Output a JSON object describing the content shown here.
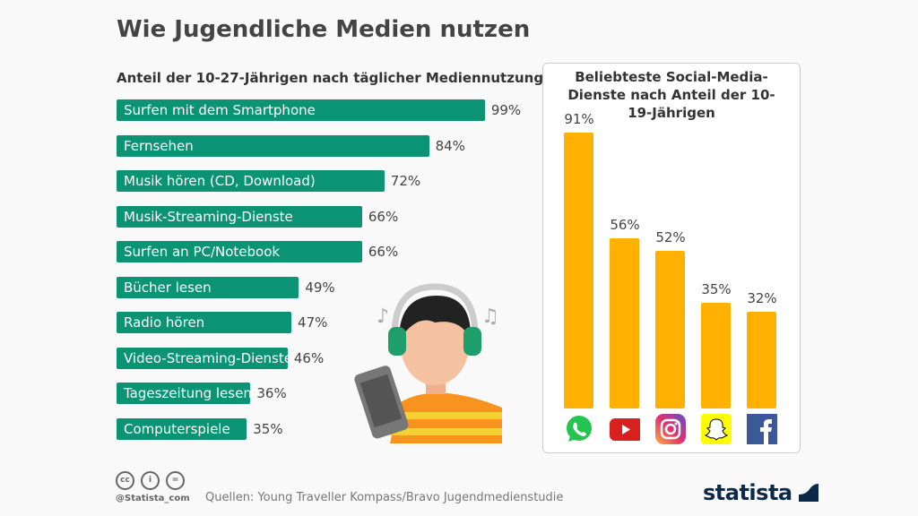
{
  "title": "Wie Jugendliche Medien nutzen",
  "chart_data": [
    {
      "type": "bar",
      "orientation": "horizontal",
      "title": "Anteil der 10-27-Jährigen nach täglicher Mediennutzung",
      "unit": "%",
      "color": "#0a9474",
      "categories": [
        "Surfen mit dem Smartphone",
        "Fernsehen",
        "Musik hören (CD, Download)",
        "Musik-Streaming-Dienste",
        "Surfen an PC/Notebook",
        "Bücher lesen",
        "Radio hören",
        "Video-Streaming-Dienste",
        "Tageszeitung lesen",
        "Computerspiele"
      ],
      "values": [
        99,
        84,
        72,
        66,
        66,
        49,
        47,
        46,
        36,
        35
      ],
      "labels": [
        "99%",
        "84%",
        "72%",
        "66%",
        "66%",
        "49%",
        "47%",
        "46%",
        "36%",
        "35%"
      ]
    },
    {
      "type": "bar",
      "orientation": "vertical",
      "title": "Beliebteste Social-Media-Dienste nach Anteil der 10-19-Jährigen",
      "unit": "%",
      "color": "#ffb000",
      "categories": [
        "WhatsApp",
        "YouTube",
        "Instagram",
        "Snapchat",
        "Facebook"
      ],
      "icons": [
        "whatsapp-icon",
        "youtube-icon",
        "instagram-icon",
        "snapchat-icon",
        "facebook-icon"
      ],
      "values": [
        91,
        56,
        52,
        35,
        32
      ],
      "labels": [
        "91%",
        "56%",
        "52%",
        "35%",
        "32%"
      ]
    }
  ],
  "footer": {
    "handle": "@Statista_com",
    "source": "Quellen: Young Traveller Kompass/Bravo Jugendmedienstudie",
    "logo": "statista",
    "license_icons": [
      "cc",
      "by",
      "nd"
    ]
  }
}
